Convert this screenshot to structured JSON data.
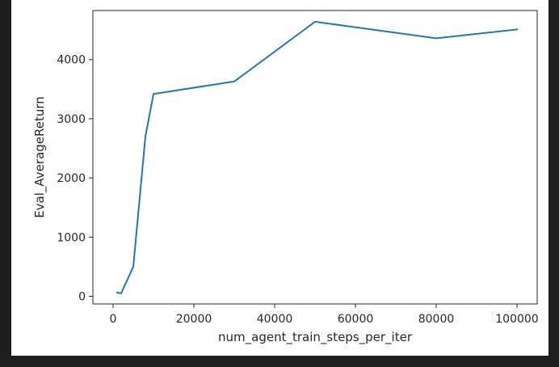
{
  "chart_data": {
    "type": "line",
    "title": "",
    "xlabel": "num_agent_train_steps_per_iter",
    "ylabel": "Eval_AverageReturn",
    "xlim": [
      -5000,
      105000
    ],
    "ylim": [
      -130,
      4830
    ],
    "xticks": [
      0,
      20000,
      40000,
      60000,
      80000,
      100000
    ],
    "yticks": [
      0,
      1000,
      2000,
      3000,
      4000
    ],
    "grid": false,
    "series": [
      {
        "color": "#1f77b4",
        "x": [
          1000,
          2000,
          5000,
          8000,
          10000,
          30000,
          50000,
          80000,
          100000
        ],
        "y": [
          60,
          50,
          500,
          2700,
          3420,
          3630,
          4640,
          4360,
          4510
        ]
      }
    ]
  }
}
